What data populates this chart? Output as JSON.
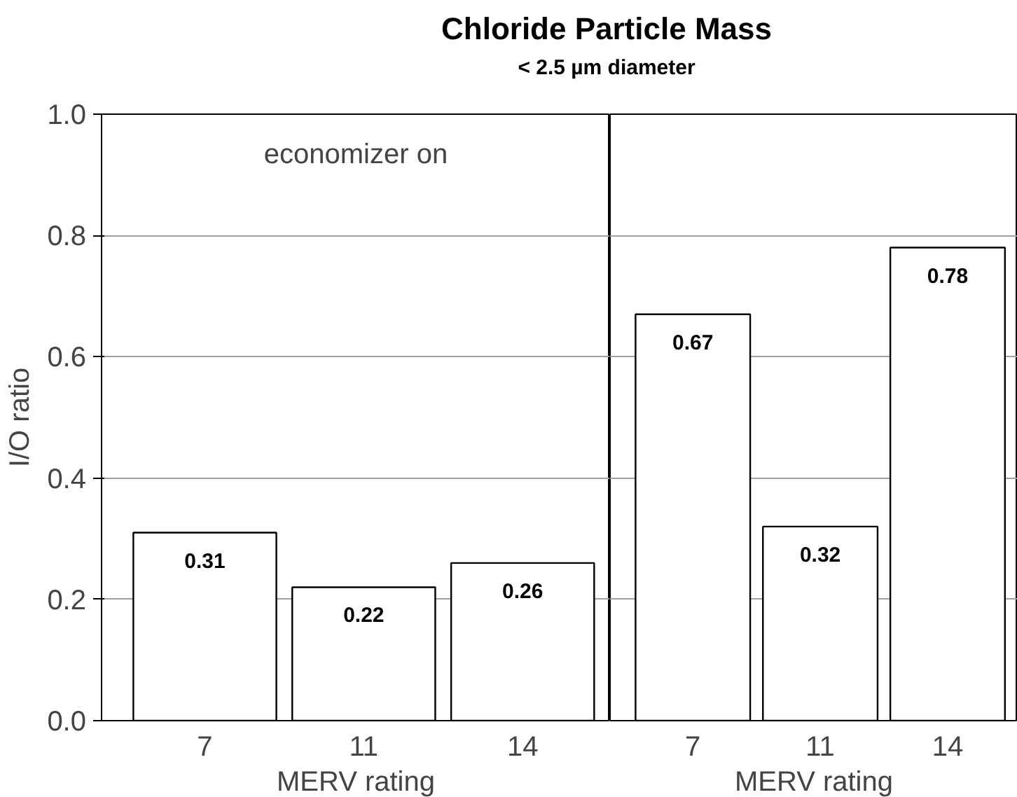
{
  "chart_data": [
    {
      "type": "bar",
      "title": "Chloride Particle Mass",
      "subtitle": "< 2.5 µm diameter",
      "ylabel": "I/O ratio",
      "xlabel": "MERV rating",
      "categories": [
        "7",
        "11",
        "14"
      ],
      "values": [
        0.31,
        0.22,
        0.26
      ],
      "color": "#ffffff",
      "ylim": [
        0,
        1
      ],
      "yticks": [
        {
          "value": 0,
          "label": "0.0"
        },
        {
          "value": 0.2,
          "label": "0.2"
        },
        {
          "value": 0.4,
          "label": "0.4"
        },
        {
          "value": 0.6,
          "label": "0.6"
        },
        {
          "value": 0.8,
          "label": "0.8"
        },
        {
          "value": 1,
          "label": "1.0"
        }
      ],
      "grid": "y",
      "data_labels": true,
      "annotations": [
        "economizer on"
      ]
    },
    {
      "type": "bar",
      "xlabel": "MERV rating",
      "categories": [
        "7",
        "11",
        "14"
      ],
      "values": [
        0.67,
        0.32,
        0.78
      ],
      "color": "#ffffff",
      "ylim": [
        0,
        1
      ],
      "yticks": [
        0,
        0.2,
        0.4,
        0.6,
        0.8,
        1
      ],
      "grid": "y",
      "data_labels": true,
      "tick_labels": "x"
    }
  ]
}
